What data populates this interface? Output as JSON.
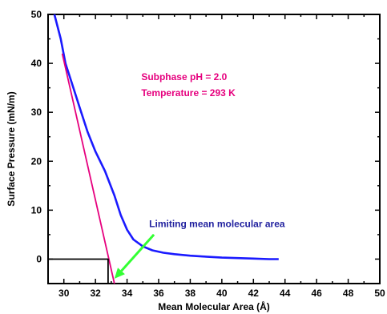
{
  "chart_data": {
    "type": "line",
    "xlabel": "Mean Molecular Area (Å)",
    "ylabel": "Surface Pressure (mN/m)",
    "xlim": [
      29,
      50
    ],
    "ylim": [
      -5,
      50
    ],
    "x_ticks": [
      30,
      32,
      34,
      36,
      38,
      40,
      42,
      44,
      46,
      48,
      50
    ],
    "y_ticks": [
      0,
      10,
      20,
      30,
      40,
      50
    ],
    "grid": false,
    "series": [
      {
        "color": "#1a1aff",
        "points": [
          [
            29.4,
            50
          ],
          [
            29.8,
            45
          ],
          [
            30.1,
            40
          ],
          [
            30.5,
            36
          ],
          [
            31.0,
            31
          ],
          [
            31.5,
            26
          ],
          [
            32.0,
            22
          ],
          [
            32.6,
            18
          ],
          [
            33.2,
            13
          ],
          [
            33.6,
            9
          ],
          [
            34.0,
            6
          ],
          [
            34.4,
            4
          ],
          [
            35.0,
            2.6
          ],
          [
            35.6,
            1.8
          ],
          [
            36.3,
            1.3
          ],
          [
            37.0,
            1.0
          ],
          [
            38.0,
            0.7
          ],
          [
            39.0,
            0.5
          ],
          [
            40.0,
            0.3
          ],
          [
            41.0,
            0.2
          ],
          [
            42.0,
            0.1
          ],
          [
            43.0,
            0.0
          ],
          [
            43.6,
            0.0
          ]
        ]
      },
      {
        "color": "#e6007e",
        "points": [
          [
            29.9,
            42
          ],
          [
            33.2,
            -5
          ]
        ]
      },
      {
        "color": "#000000",
        "points": [
          [
            29,
            0
          ],
          [
            32.8,
            0
          ],
          [
            32.8,
            -5
          ]
        ]
      }
    ],
    "annotations": [
      {
        "text": "Subphase pH = 2.0",
        "color": "#e6007e",
        "x": 34.9,
        "y": 36.6
      },
      {
        "text": "Temperature = 293 K",
        "color": "#e6007e",
        "x": 34.9,
        "y": 33.3
      },
      {
        "text": "Limiting mean molecular area",
        "color": "#1f1f9e",
        "x": 35.4,
        "y": 6.5
      }
    ],
    "arrow": {
      "color": "#33ff33",
      "from": [
        35.7,
        5.0
      ],
      "to": [
        33.2,
        -4.0
      ]
    }
  }
}
